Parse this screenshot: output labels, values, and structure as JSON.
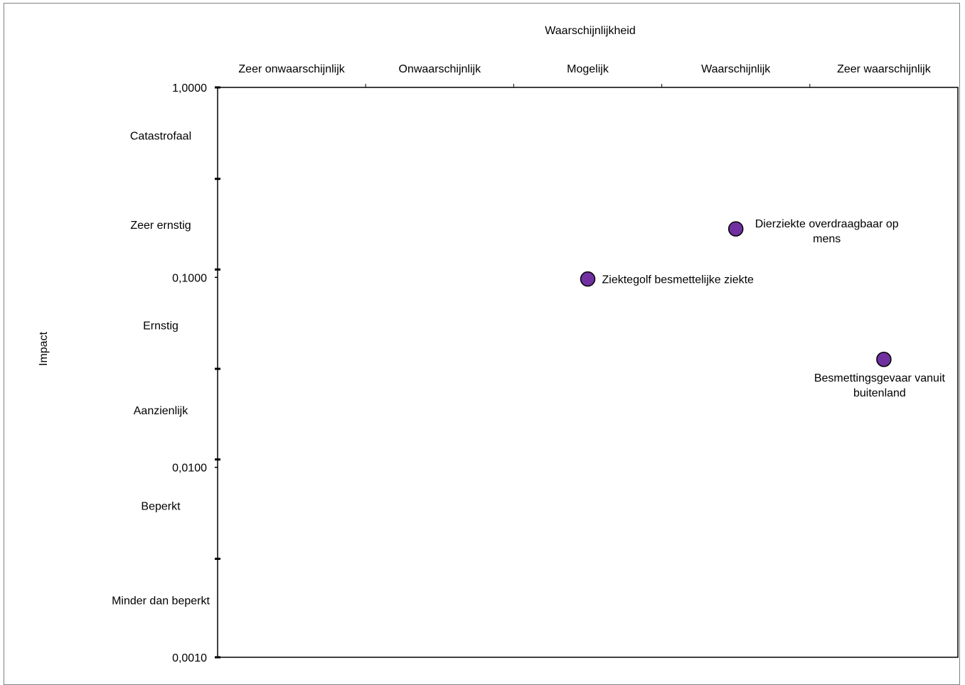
{
  "chart_data": {
    "type": "scatter",
    "title": "Waarschijnlijkheid",
    "xlabel": "Waarschijnlijkheid",
    "ylabel": "Impact",
    "x_scale": "categorical",
    "y_scale": "log",
    "ylim": [
      0.001,
      1
    ],
    "x_categories": [
      "Zeer onwaarschijnlijk",
      "Onwaarschijnlijk",
      "Mogelijk",
      "Waarschijnlijk",
      "Zeer waarschijnlijk"
    ],
    "y_tick_labels": [
      {
        "value": 1,
        "label": "1,0000"
      },
      {
        "value": 0.1,
        "label": "0,1000"
      },
      {
        "value": 0.01,
        "label": "0,0100"
      },
      {
        "value": 0.001,
        "label": "0,0010"
      }
    ],
    "y_category_bounds": [
      1,
      0.33,
      0.11,
      0.033,
      0.011,
      0.0033,
      0.001
    ],
    "y_categories": [
      {
        "label": "Catastrofaal",
        "value": 0.56
      },
      {
        "label": "Zeer ernstig",
        "value": 0.19
      },
      {
        "label": "Ernstig",
        "value": 0.056
      },
      {
        "label": "Aanzienlijk",
        "value": 0.02
      },
      {
        "label": "Beperkt",
        "value": 0.0063
      },
      {
        "label": "Minder dan beperkt",
        "value": 0.002
      }
    ],
    "points": [
      {
        "label": "Ziektegolf besmettelijke ziekte",
        "x": 2.5,
        "y": 0.098
      },
      {
        "label": "Dierziekte overdraagbaar op mens",
        "x": 3.5,
        "y": 0.18
      },
      {
        "label": "Besmettingsgevaar vanuit buitenland",
        "x": 4.5,
        "y": 0.037
      }
    ],
    "marker_color": "#7030a0",
    "grid": false,
    "legend": "none"
  }
}
